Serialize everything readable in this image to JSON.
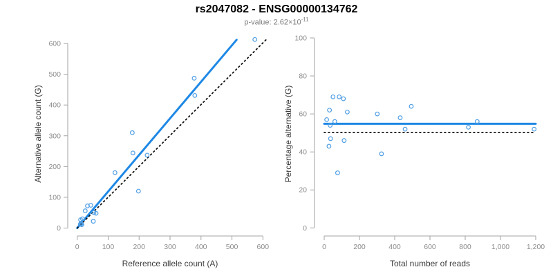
{
  "header": {
    "title": "rs2047082 - ENSG00000134762",
    "p_value_label": "p-value: 2.62×10",
    "p_value_exponent": "-11"
  },
  "colors": {
    "trend_line_blue": "#1e88e5",
    "point_stroke_blue": "#4d9de3",
    "reference_line_black": "#111111",
    "axis_gray": "#a3a3a3",
    "tick_label_gray": "#8a8a8a"
  },
  "chart_data": [
    {
      "id": "allele-count-scatter",
      "type": "scatter",
      "title": "",
      "xlabel": "Reference allele count (A)",
      "ylabel": "Alternative allele count (G)",
      "xlim": [
        0,
        600
      ],
      "ylim": [
        0,
        600
      ],
      "grid": false,
      "legend": "none",
      "xticks": [
        0,
        100,
        200,
        300,
        400,
        500,
        600
      ],
      "xtick_labels": [
        "0",
        "100",
        "200",
        "300",
        "400",
        "500",
        "600"
      ],
      "yticks": [
        0,
        100,
        200,
        300,
        400,
        500,
        600
      ],
      "ytick_labels": [
        "0",
        "100",
        "200",
        "300",
        "400",
        "500",
        "600"
      ],
      "points": [
        [
          10,
          12
        ],
        [
          13,
          14
        ],
        [
          15,
          11
        ],
        [
          12,
          16
        ],
        [
          11,
          27
        ],
        [
          17,
          30
        ],
        [
          26,
          56
        ],
        [
          33,
          72
        ],
        [
          44,
          74
        ],
        [
          52,
          22
        ],
        [
          54,
          50
        ],
        [
          61,
          48
        ],
        [
          122,
          180
        ],
        [
          178,
          310
        ],
        [
          180,
          244
        ],
        [
          198,
          120
        ],
        [
          226,
          237
        ],
        [
          378,
          487
        ],
        [
          380,
          431
        ],
        [
          574,
          613
        ]
      ],
      "lines": [
        {
          "name": "regression-line",
          "style": "solid",
          "color": "#1e88e5",
          "from": [
            0,
            0
          ],
          "to": [
            515,
            612
          ]
        },
        {
          "name": "identity-line",
          "style": "dotted",
          "color": "#111111",
          "from": [
            0,
            0
          ],
          "to": [
            610,
            612
          ]
        }
      ]
    },
    {
      "id": "percentage-alternative-scatter",
      "type": "scatter",
      "title": "",
      "xlabel": "Total number of reads",
      "ylabel": "Percentage alternative (G)",
      "xlim": [
        0,
        1200
      ],
      "ylim": [
        0,
        100
      ],
      "grid": false,
      "legend": "none",
      "xticks": [
        0,
        200,
        400,
        600,
        800,
        1000,
        1200
      ],
      "xtick_labels": [
        "0",
        "200",
        "400",
        "600",
        "800",
        "1,000",
        "1,200"
      ],
      "yticks": [
        0,
        20,
        40,
        60,
        80,
        100
      ],
      "ytick_labels": [
        "0",
        "20",
        "40",
        "60",
        "80",
        "100"
      ],
      "points": [
        [
          14,
          57
        ],
        [
          27,
          43
        ],
        [
          30,
          62
        ],
        [
          34,
          54
        ],
        [
          36,
          47
        ],
        [
          50,
          69
        ],
        [
          60,
          56
        ],
        [
          76,
          29
        ],
        [
          85,
          69
        ],
        [
          109,
          68
        ],
        [
          113,
          46
        ],
        [
          131,
          61
        ],
        [
          301,
          60
        ],
        [
          325,
          39
        ],
        [
          431,
          58
        ],
        [
          459,
          52
        ],
        [
          494,
          64
        ],
        [
          818,
          53
        ],
        [
          868,
          56
        ],
        [
          1191,
          52
        ]
      ],
      "lines": [
        {
          "name": "mean-percentage-line",
          "style": "solid",
          "color": "#1e88e5",
          "from": [
            0,
            54.8
          ],
          "to": [
            1200,
            54.8
          ]
        },
        {
          "name": "fifty-percent-line",
          "style": "dotted",
          "color": "#111111",
          "from": [
            0,
            50.2
          ],
          "to": [
            1185,
            50.2
          ]
        }
      ]
    }
  ]
}
